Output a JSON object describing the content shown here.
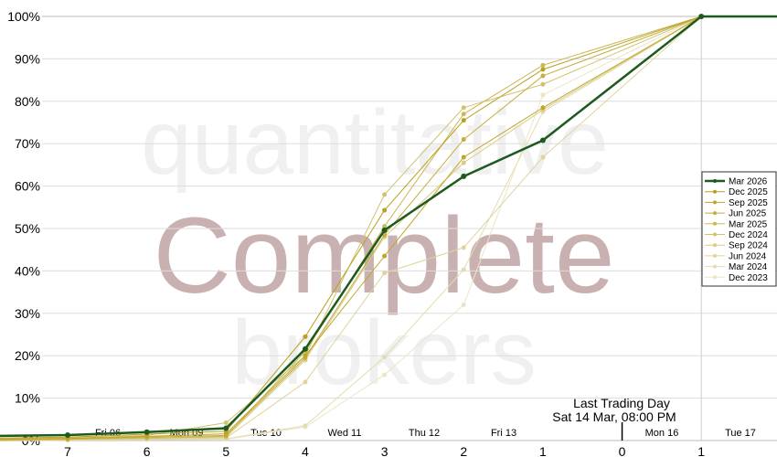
{
  "chart_data": {
    "type": "line",
    "title": "",
    "xlabel": "",
    "ylabel": "",
    "ylim": [
      0,
      100
    ],
    "y_ticks": [
      "0%",
      "10%",
      "20%",
      "30%",
      "40%",
      "50%",
      "60%",
      "70%",
      "80%",
      "90%",
      "100%"
    ],
    "x_tick_labels": [
      "7",
      "6",
      "5",
      "4",
      "3",
      "2",
      "1",
      "0",
      "1"
    ],
    "day_labels": [
      "Fri 06",
      "Mon 09",
      "Tue 10",
      "Wed 11",
      "Thu 12",
      "Fri 13",
      "Mon 16",
      "Tue 17"
    ],
    "grid": true,
    "legend_placement": "right",
    "annotation": {
      "line1": "Last Trading Day",
      "line2": "Sat 14 Mar, 08:00 PM"
    },
    "watermark": [
      "quantitative",
      "Complete",
      "brokers"
    ],
    "series": [
      {
        "name": "Mar 2026",
        "color": "#1e5a1e",
        "values": [
          1.3,
          2.0,
          2.9,
          21.6,
          49.6,
          62.3,
          70.8,
          null,
          100
        ]
      },
      {
        "name": "Dec 2025",
        "color": "#b8a020",
        "values": [
          0.8,
          1.5,
          2.2,
          24.5,
          54.3,
          75.5,
          87.5,
          null,
          100
        ]
      },
      {
        "name": "Sep 2025",
        "color": "#bea62a",
        "values": [
          0.5,
          1.0,
          1.6,
          20.0,
          43.5,
          66.8,
          78.5,
          null,
          100
        ]
      },
      {
        "name": "Jun 2025",
        "color": "#c4ae3c",
        "values": [
          0.4,
          0.8,
          1.2,
          19.5,
          48.5,
          71.0,
          86.0,
          null,
          100
        ]
      },
      {
        "name": "Mar 2025",
        "color": "#cbb856",
        "values": [
          0.3,
          0.6,
          1.0,
          21.0,
          50.5,
          77.0,
          88.5,
          null,
          100
        ]
      },
      {
        "name": "Dec 2024",
        "color": "#d2c26e",
        "values": [
          0.6,
          1.2,
          4.2,
          20.0,
          58.0,
          78.5,
          84.0,
          null,
          100
        ]
      },
      {
        "name": "Sep 2024",
        "color": "#d8cb86",
        "values": [
          0.2,
          0.5,
          0.8,
          19.0,
          48.0,
          65.5,
          78.0,
          null,
          100
        ]
      },
      {
        "name": "Jun 2024",
        "color": "#ded49c",
        "values": [
          0.2,
          0.4,
          0.6,
          13.8,
          39.5,
          45.5,
          66.8,
          null,
          100
        ]
      },
      {
        "name": "Mar 2024",
        "color": "#e4dcb0",
        "values": [
          0.1,
          0.3,
          0.4,
          3.5,
          19.7,
          40.3,
          77.5,
          null,
          100
        ]
      },
      {
        "name": "Dec 2023",
        "color": "#ebe5c6",
        "values": [
          0.1,
          0.2,
          0.3,
          3.2,
          15.5,
          32.0,
          81.5,
          null,
          100
        ]
      }
    ]
  }
}
